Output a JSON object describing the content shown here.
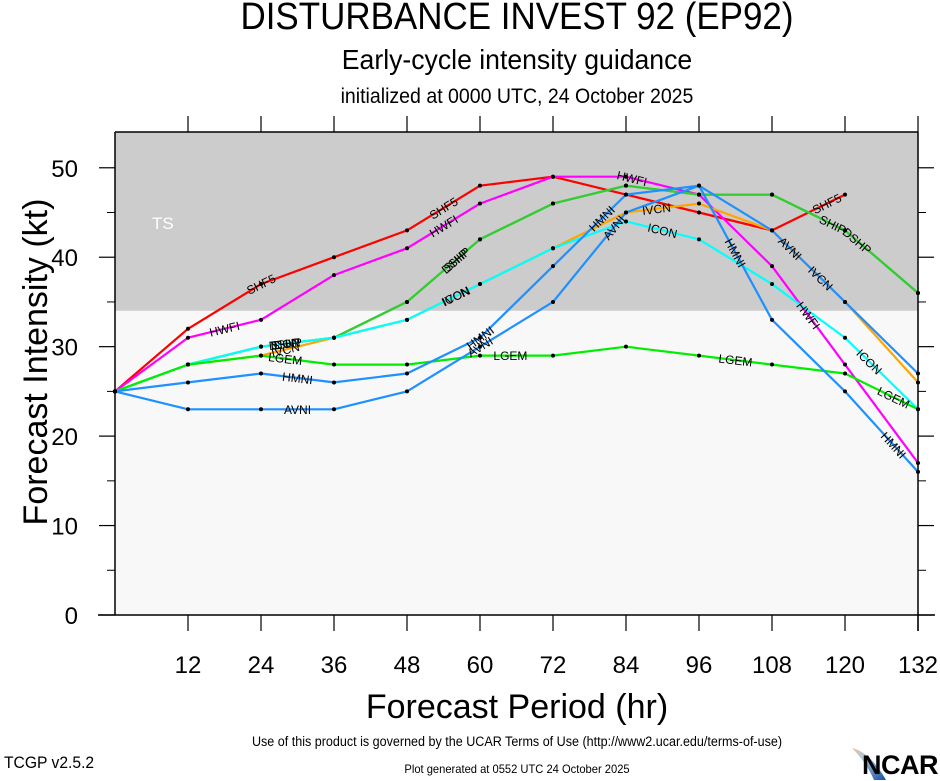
{
  "header": {
    "title": "DISTURBANCE INVEST 92 (EP92)",
    "subtitle": "Early-cycle intensity guidance",
    "initialized": "initialized at 0000 UTC, 24 October 2025"
  },
  "footer": {
    "terms": "Use of this product is governed by the UCAR Terms of Use (http://www2.ucar.edu/terms-of-use)",
    "version": "TCGP v2.5.2",
    "generated": "Plot generated at 0552 UTC   24 October 2025",
    "logo_text": "NCAR"
  },
  "chart_data": {
    "type": "line",
    "title": "DISTURBANCE INVEST 92 (EP92)",
    "subtitle": "Early-cycle intensity guidance",
    "xlabel": "Forecast Period (hr)",
    "ylabel": "Forecast Intensity (kt)",
    "xlim": [
      0,
      132
    ],
    "ylim": [
      0,
      54
    ],
    "x_ticks": [
      12,
      24,
      36,
      48,
      60,
      72,
      84,
      96,
      108,
      120,
      132
    ],
    "y_ticks": [
      0,
      10,
      20,
      30,
      40,
      50
    ],
    "y_minor_ticks": [
      5,
      15,
      25,
      35,
      45
    ],
    "grid": false,
    "legend": "none (inline line labels)",
    "bands": [
      {
        "label": "TS",
        "from": 34,
        "to": 54,
        "color": "#cccccc"
      },
      {
        "label": "",
        "from": 0,
        "to": 34,
        "color": "#f8f8f8"
      }
    ],
    "series": [
      {
        "name": "SHF5",
        "color": "#ff0000",
        "x": [
          0,
          12,
          24,
          36,
          48,
          60,
          72,
          84,
          96,
          108,
          120
        ],
        "values": [
          25,
          32,
          37,
          40,
          43,
          48,
          49,
          47,
          45,
          43,
          47
        ],
        "label_at": [
          24,
          54,
          117
        ]
      },
      {
        "name": "HWFI",
        "color": "#ff00ff",
        "x": [
          0,
          12,
          24,
          36,
          48,
          60,
          72,
          84,
          96,
          108,
          120,
          132
        ],
        "values": [
          25,
          31,
          33,
          38,
          41,
          46,
          49,
          49,
          47,
          39,
          28,
          17
        ],
        "label_at": [
          18,
          54,
          85,
          114
        ]
      },
      {
        "name": "DSHP",
        "color": "#33cc33",
        "x": [
          0,
          12,
          24,
          36,
          48,
          60,
          72,
          84,
          96,
          108,
          120,
          132
        ],
        "values": [
          25,
          28,
          30,
          31,
          35,
          42,
          46,
          48,
          47,
          47,
          43,
          36
        ],
        "label_at": [
          28,
          56,
          122
        ]
      },
      {
        "name": "SHIP",
        "color": "#33cc33",
        "x": [
          0,
          12,
          24,
          36,
          48,
          60,
          72,
          84,
          96,
          108,
          120,
          132
        ],
        "values": [
          25,
          28,
          30,
          31,
          35,
          42,
          46,
          48,
          47,
          47,
          43,
          36
        ],
        "label_at": [
          28,
          56,
          118
        ]
      },
      {
        "name": "IVCN",
        "color": "#ffa500",
        "x": [
          0,
          12,
          24,
          36,
          48,
          60,
          72,
          84,
          96,
          108,
          120,
          132
        ],
        "values": [
          25,
          28,
          29,
          31,
          33,
          37,
          41,
          45,
          46,
          43,
          35,
          26
        ],
        "label_at": [
          28,
          56,
          89,
          116
        ]
      },
      {
        "name": "ICON",
        "color": "#00ffff",
        "x": [
          0,
          12,
          24,
          36,
          48,
          60,
          72,
          84,
          96,
          108,
          120,
          132
        ],
        "values": [
          25,
          28,
          30,
          31,
          33,
          37,
          41,
          44,
          42,
          37,
          31,
          23
        ],
        "label_at": [
          28,
          56,
          90,
          124
        ]
      },
      {
        "name": "LGEM",
        "color": "#00ee00",
        "x": [
          0,
          12,
          24,
          36,
          48,
          60,
          72,
          84,
          96,
          108,
          120,
          132
        ],
        "values": [
          25,
          28,
          29,
          28,
          28,
          29,
          29,
          30,
          29,
          28,
          27,
          23
        ],
        "label_at": [
          28,
          65,
          102,
          128
        ]
      },
      {
        "name": "HMNI",
        "color": "#1e90ff",
        "x": [
          0,
          12,
          24,
          36,
          48,
          60,
          72,
          84,
          96,
          108,
          120,
          132
        ],
        "values": [
          25,
          26,
          27,
          26,
          27,
          31,
          39,
          47,
          48,
          33,
          25,
          16
        ],
        "label_at": [
          30,
          60,
          80,
          102,
          128
        ]
      },
      {
        "name": "AVNI",
        "color": "#1e90ff",
        "x": [
          0,
          12,
          24,
          36,
          48,
          60,
          72,
          84,
          96,
          108,
          120,
          132
        ],
        "values": [
          25,
          23,
          23,
          23,
          25,
          30,
          35,
          45,
          48,
          43,
          35,
          27
        ],
        "label_at": [
          30,
          60,
          82,
          111
        ]
      }
    ]
  }
}
